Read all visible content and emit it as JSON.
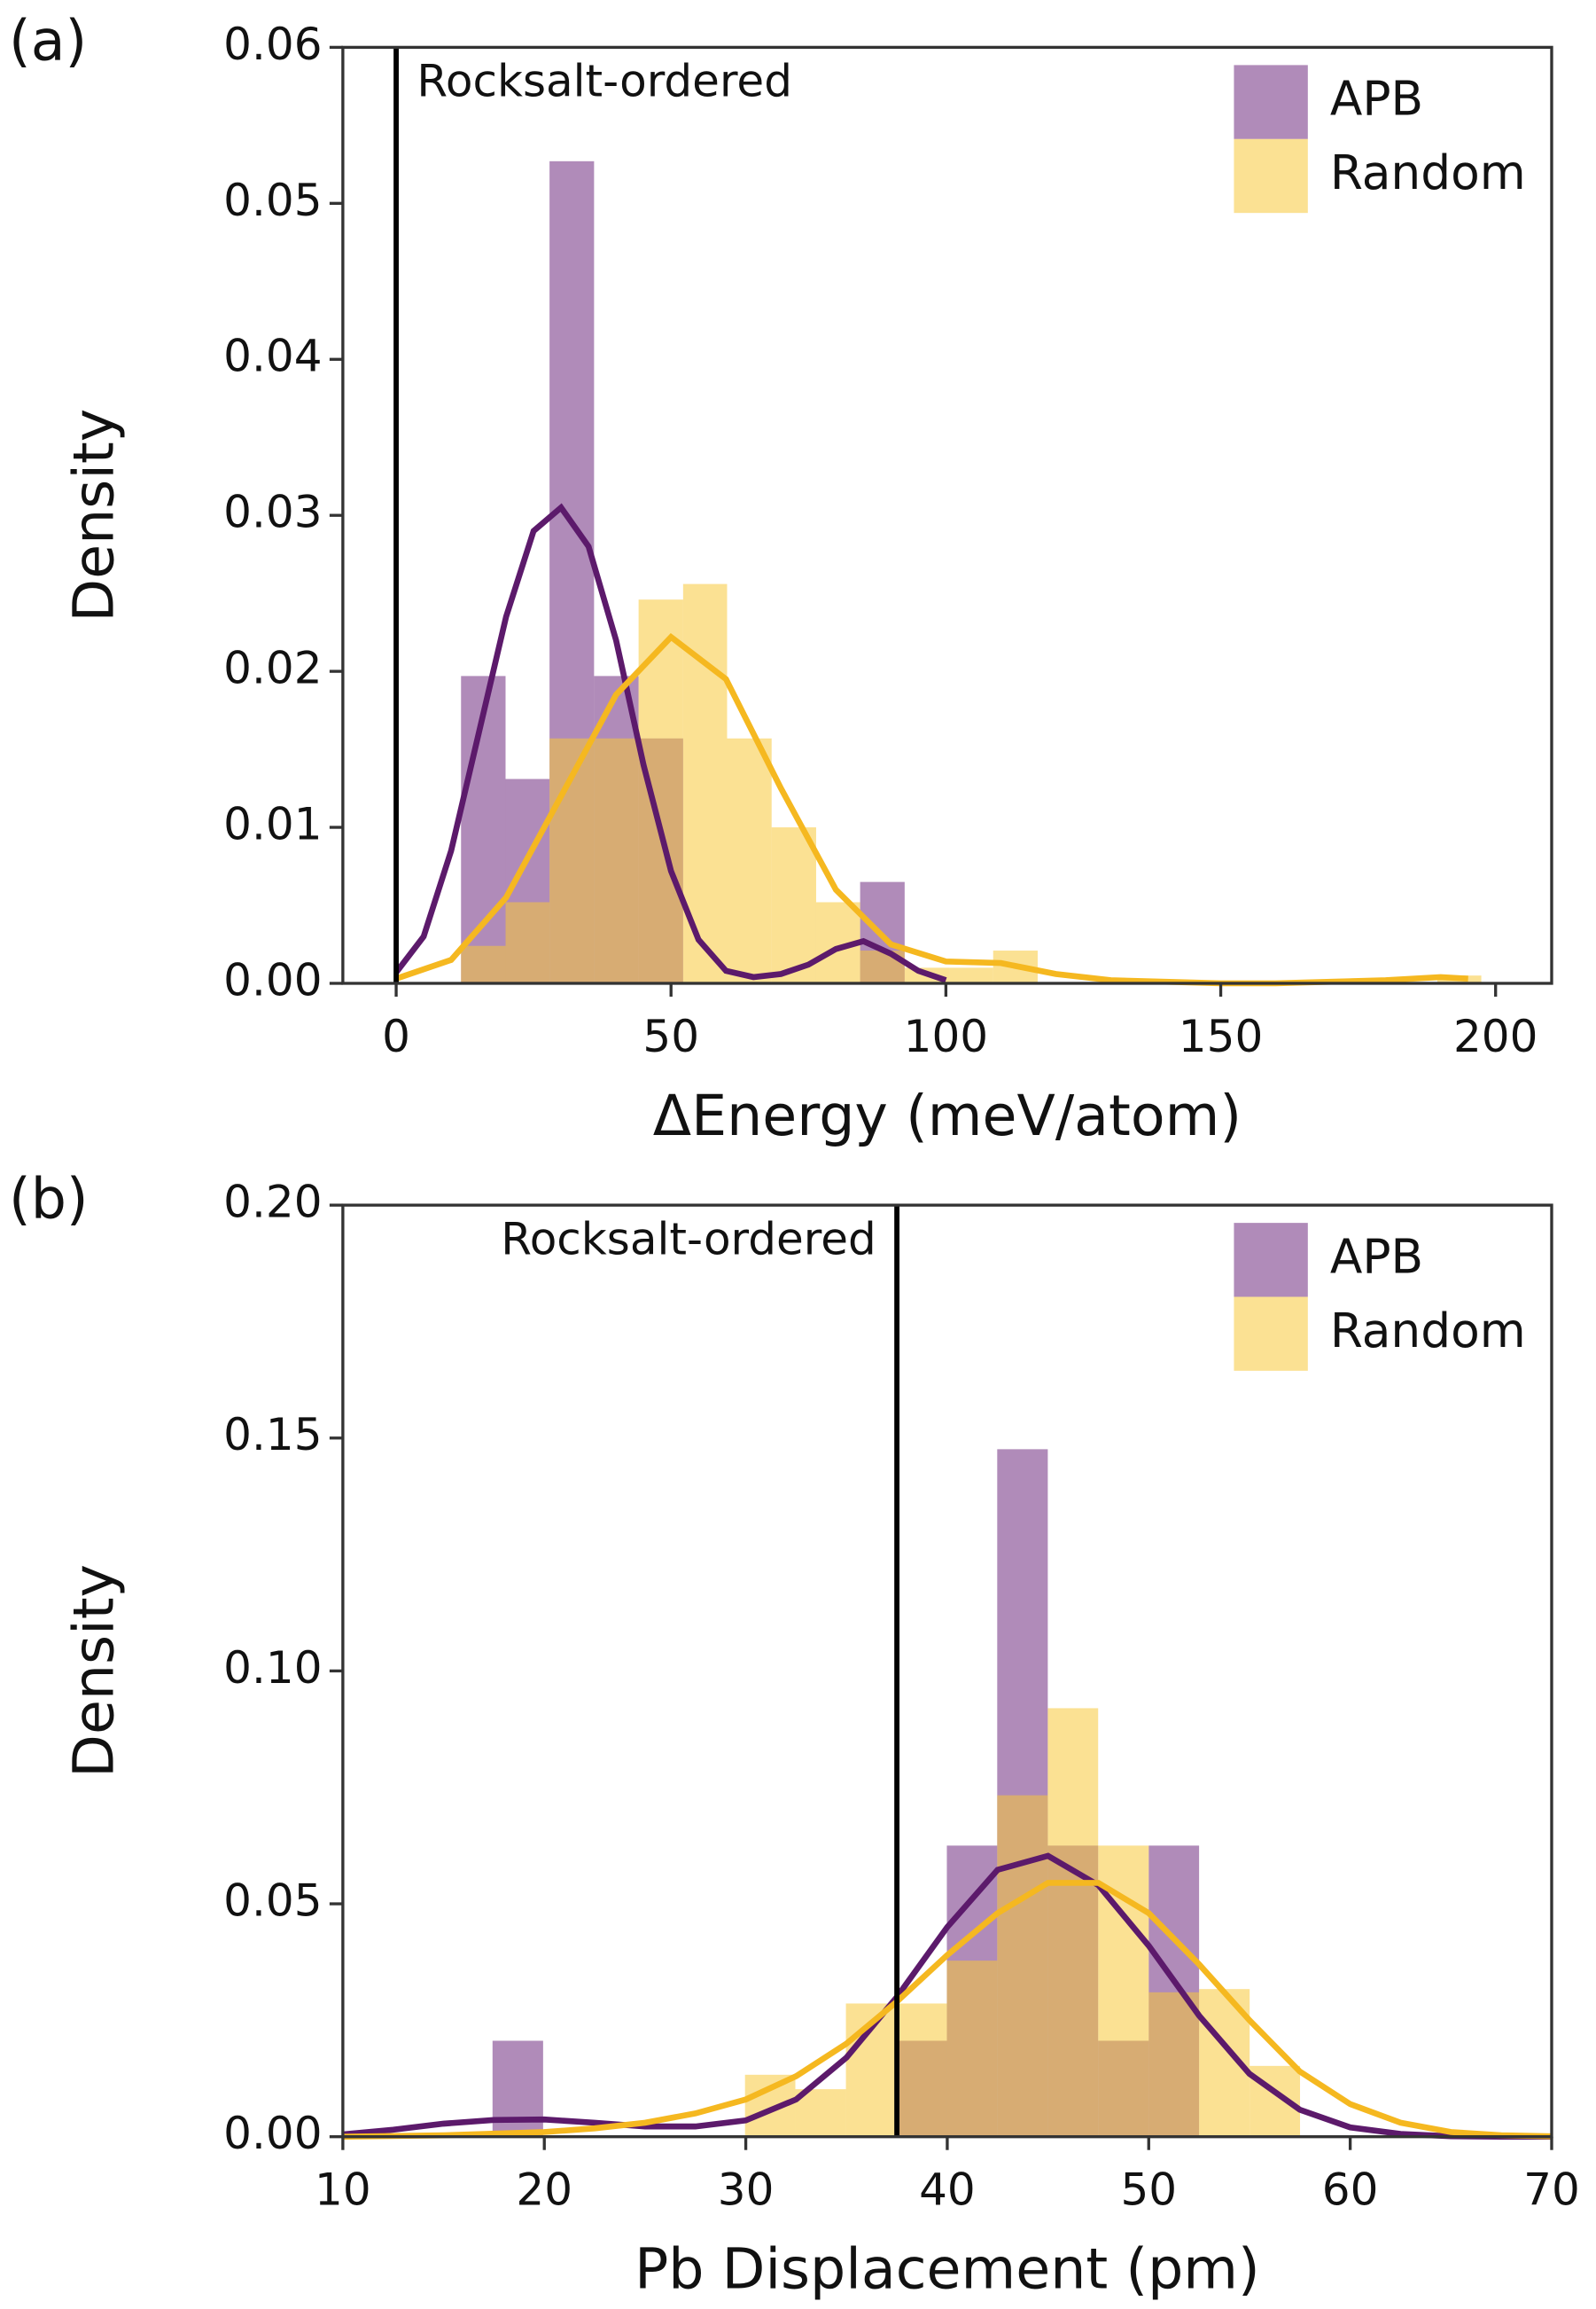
{
  "chart_data": [
    {
      "type": "histogram",
      "panel": "(a)",
      "x_label": "ΔEnergy (meV/atom)",
      "y_label": "Density",
      "xlim": [
        -9.7,
        210.2
      ],
      "ylim": [
        0,
        0.06
      ],
      "xticks": [
        0,
        50,
        100,
        150,
        200
      ],
      "yticks": [
        {
          "value": 0,
          "label": "0.00"
        },
        {
          "value": 0.01,
          "label": "0.01"
        },
        {
          "value": 0.02,
          "label": "0.02"
        },
        {
          "value": 0.03,
          "label": "0.03"
        },
        {
          "value": 0.04,
          "label": "0.04"
        },
        {
          "value": 0.05,
          "label": "0.05"
        },
        {
          "value": 0.06,
          "label": "0.06"
        }
      ],
      "bins": [
        11.8,
        19.9,
        27.9,
        36.0,
        44.1,
        52.2,
        60.2,
        68.3,
        76.4,
        84.4,
        92.5,
        100.6,
        108.6,
        116.7,
        124.8,
        132.9,
        140.9,
        149.0,
        157.1,
        165.2,
        173.2,
        181.3,
        189.4,
        197.4
      ],
      "series": [
        {
          "name": "APB",
          "color": "#6f2c7f",
          "values": [
            0.0197,
            0.0131,
            0.0527,
            0.0197,
            0.0157,
            0,
            0,
            0,
            0,
            0.0065,
            0,
            0,
            0,
            0,
            0,
            0,
            0,
            0,
            0,
            0,
            0,
            0,
            0
          ],
          "kde": {
            "color": "#5c1a6b",
            "x": [
              0,
              5,
              10,
              15,
              20,
              25,
              30,
              35,
              40,
              45,
              50,
              55,
              60,
              65,
              70,
              75,
              80,
              85,
              90,
              95,
              100
            ],
            "y": [
              0.0007,
              0.003,
              0.0085,
              0.016,
              0.0235,
              0.029,
              0.0305,
              0.028,
              0.022,
              0.014,
              0.0072,
              0.0028,
              0.0008,
              0.0004,
              0.0006,
              0.0012,
              0.0022,
              0.0027,
              0.0019,
              0.0008,
              0.0002
            ]
          }
        },
        {
          "name": "Random",
          "color": "#f8c93b",
          "values": [
            0.0024,
            0.0052,
            0.0157,
            0.0157,
            0.0246,
            0.0256,
            0.0157,
            0.01,
            0.0052,
            0.0021,
            0.001,
            0.001,
            0.0021,
            0,
            0,
            0,
            0,
            0,
            0,
            0,
            0,
            0,
            0.0005
          ],
          "kde": {
            "color": "#f5b820",
            "x": [
              0,
              10,
              20,
              30,
              40,
              50,
              60,
              70,
              80,
              90,
              100,
              110,
              120,
              130,
              140,
              150,
              160,
              170,
              180,
              190,
              195
            ],
            "y": [
              0.0003,
              0.0015,
              0.0055,
              0.012,
              0.0185,
              0.0222,
              0.0195,
              0.0125,
              0.006,
              0.0025,
              0.0014,
              0.0013,
              0.0006,
              0.0002,
              0.0001,
              0,
              0,
              0.0001,
              0.0002,
              0.0004,
              0.0003
            ]
          }
        }
      ],
      "annotation": {
        "text": "Rocksalt-ordered",
        "x": 0
      },
      "legend": "upper right"
    },
    {
      "type": "histogram",
      "panel": "(b)",
      "x_label": "Pb Displacement (pm)",
      "y_label": "Density",
      "xlim": [
        10,
        70
      ],
      "ylim": [
        0,
        0.2
      ],
      "xticks": [
        10,
        20,
        30,
        40,
        50,
        60,
        70
      ],
      "yticks": [
        {
          "value": 0,
          "label": "0.00"
        },
        {
          "value": 0.05,
          "label": "0.05"
        },
        {
          "value": 0.1,
          "label": "0.10"
        },
        {
          "value": 0.15,
          "label": "0.15"
        },
        {
          "value": 0.2,
          "label": "0.20"
        }
      ],
      "bins": [
        17.43,
        19.94,
        22.44,
        24.95,
        27.45,
        29.96,
        32.46,
        34.97,
        37.47,
        39.98,
        42.48,
        44.99,
        47.49,
        50.0,
        52.5,
        55.01,
        57.51
      ],
      "series": [
        {
          "name": "APB",
          "color": "#6f2c7f",
          "values": [
            0.0206,
            0,
            0,
            0,
            0,
            0,
            0,
            0,
            0.0206,
            0.0625,
            0.1476,
            0.0625,
            0.0206,
            0.0625,
            0,
            0
          ],
          "kde": {
            "color": "#5c1a6b",
            "x": [
              10,
              12.5,
              15,
              17.5,
              20,
              22.5,
              25,
              27.5,
              30,
              32.5,
              35,
              37.5,
              40,
              42.5,
              45,
              47.5,
              50,
              52.5,
              55,
              57.5,
              60,
              62.5,
              65,
              67.5,
              70
            ],
            "y": [
              0.0005,
              0.0015,
              0.0028,
              0.0036,
              0.0037,
              0.003,
              0.0022,
              0.0022,
              0.0035,
              0.008,
              0.017,
              0.03,
              0.045,
              0.0573,
              0.0603,
              0.054,
              0.041,
              0.026,
              0.0135,
              0.0058,
              0.002,
              0.0006,
              0.0001,
              0,
              0
            ]
          }
        },
        {
          "name": "Random",
          "color": "#f8c93b",
          "values": [
            0,
            0,
            0,
            0,
            0,
            0.0133,
            0.0102,
            0.0286,
            0.0286,
            0.0378,
            0.0733,
            0.092,
            0.0625,
            0.031,
            0.0317,
            0.0152
          ],
          "kde": {
            "color": "#f5b820",
            "x": [
              10,
              15,
              20,
              22.5,
              25,
              27.5,
              30,
              32.5,
              35,
              37.5,
              40,
              42.5,
              45,
              47.5,
              50,
              52.5,
              55,
              57.5,
              60,
              62.5,
              65,
              67.5,
              70
            ],
            "y": [
              0,
              0.0003,
              0.001,
              0.0018,
              0.003,
              0.005,
              0.008,
              0.013,
              0.02,
              0.029,
              0.039,
              0.048,
              0.0545,
              0.0545,
              0.048,
              0.037,
              0.025,
              0.014,
              0.007,
              0.003,
              0.001,
              0.0003,
              0.0001
            ]
          }
        }
      ],
      "annotation": {
        "text": "Rocksalt-ordered",
        "x": 37.5
      },
      "legend": "upper right"
    }
  ]
}
